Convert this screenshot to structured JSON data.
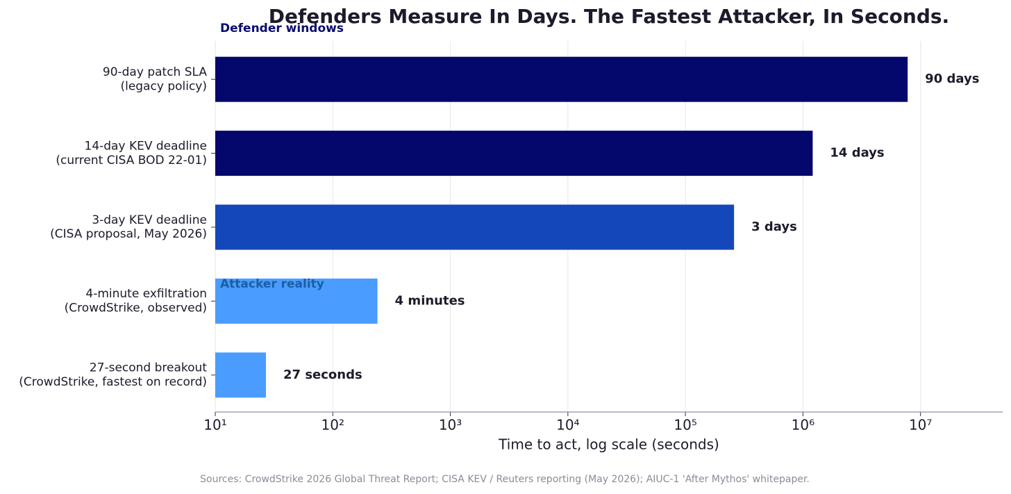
{
  "chart_data": {
    "type": "barh",
    "title": "Defenders Measure In Days. The Fastest Attacker, In Seconds.",
    "categories": [
      "90-day patch SLA\n(legacy policy)",
      "14-day KEV deadline\n(current CISA BOD 22-01)",
      "3-day KEV deadline\n(CISA proposal, May 2026)",
      "4-minute exfiltration\n(CrowdStrike, observed)",
      "27-second breakout\n(CrowdStrike, fastest on record)"
    ],
    "values": [
      7776000,
      1209600,
      259200,
      240,
      27
    ],
    "value_labels": [
      "90 days",
      "14 days",
      "3 days",
      "4 minutes",
      "27 seconds"
    ],
    "colors": [
      "#04086c",
      "#04086c",
      "#1447b9",
      "#4a9dff",
      "#4a9dff"
    ],
    "x_label": "Time to act, log scale (seconds)",
    "x_scale": "log",
    "xlim": [
      10,
      50000000
    ],
    "xticks": [
      {
        "value": 10,
        "label": "10¹"
      },
      {
        "value": 100,
        "label": "10²"
      },
      {
        "value": 1000,
        "label": "10³"
      },
      {
        "value": 10000,
        "label": "10⁴"
      },
      {
        "value": 100000,
        "label": "10⁵"
      },
      {
        "value": 1000000,
        "label": "10⁶"
      },
      {
        "value": 10000000,
        "label": "10⁷"
      }
    ],
    "grid": true,
    "annotations": [
      {
        "text": "Defender windows",
        "color": "#0b0d6e"
      },
      {
        "text": "Attacker reality",
        "color": "#1a5fa6"
      }
    ],
    "source": "Sources: CrowdStrike 2026 Global Threat Report; CISA KEV / Reuters reporting (May 2026); AIUC-1 'After Mythos' whitepaper."
  }
}
